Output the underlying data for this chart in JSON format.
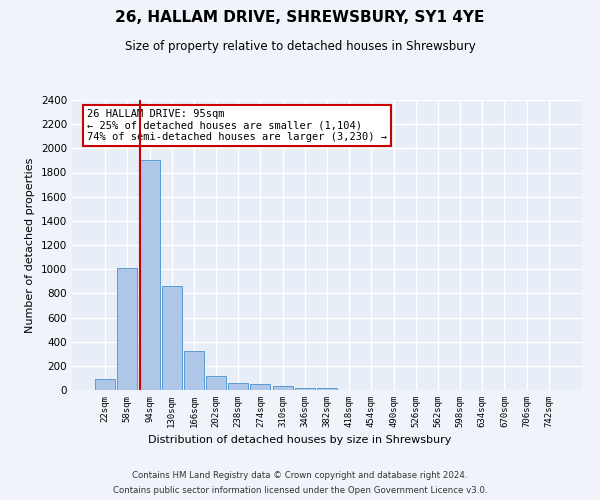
{
  "title": "26, HALLAM DRIVE, SHREWSBURY, SY1 4YE",
  "subtitle": "Size of property relative to detached houses in Shrewsbury",
  "xlabel": "Distribution of detached houses by size in Shrewsbury",
  "ylabel": "Number of detached properties",
  "bar_labels": [
    "22sqm",
    "58sqm",
    "94sqm",
    "130sqm",
    "166sqm",
    "202sqm",
    "238sqm",
    "274sqm",
    "310sqm",
    "346sqm",
    "382sqm",
    "418sqm",
    "454sqm",
    "490sqm",
    "526sqm",
    "562sqm",
    "598sqm",
    "634sqm",
    "670sqm",
    "706sqm",
    "742sqm"
  ],
  "bar_values": [
    90,
    1010,
    1900,
    860,
    320,
    115,
    55,
    50,
    35,
    20,
    20,
    0,
    0,
    0,
    0,
    0,
    0,
    0,
    0,
    0,
    0
  ],
  "bar_color": "#aec6e8",
  "bar_edge_color": "#5b9bd5",
  "background_color": "#e8eef7",
  "grid_color": "#ffffff",
  "vline_color": "#cc0000",
  "ylim": [
    0,
    2400
  ],
  "yticks": [
    0,
    200,
    400,
    600,
    800,
    1000,
    1200,
    1400,
    1600,
    1800,
    2000,
    2200,
    2400
  ],
  "annotation_title": "26 HALLAM DRIVE: 95sqm",
  "annotation_line1": "← 25% of detached houses are smaller (1,104)",
  "annotation_line2": "74% of semi-detached houses are larger (3,230) →",
  "annotation_box_color": "#ffffff",
  "annotation_box_edge": "#cc0000",
  "footer_line1": "Contains HM Land Registry data © Crown copyright and database right 2024.",
  "footer_line2": "Contains public sector information licensed under the Open Government Licence v3.0.",
  "fig_bg": "#f0f4fa"
}
